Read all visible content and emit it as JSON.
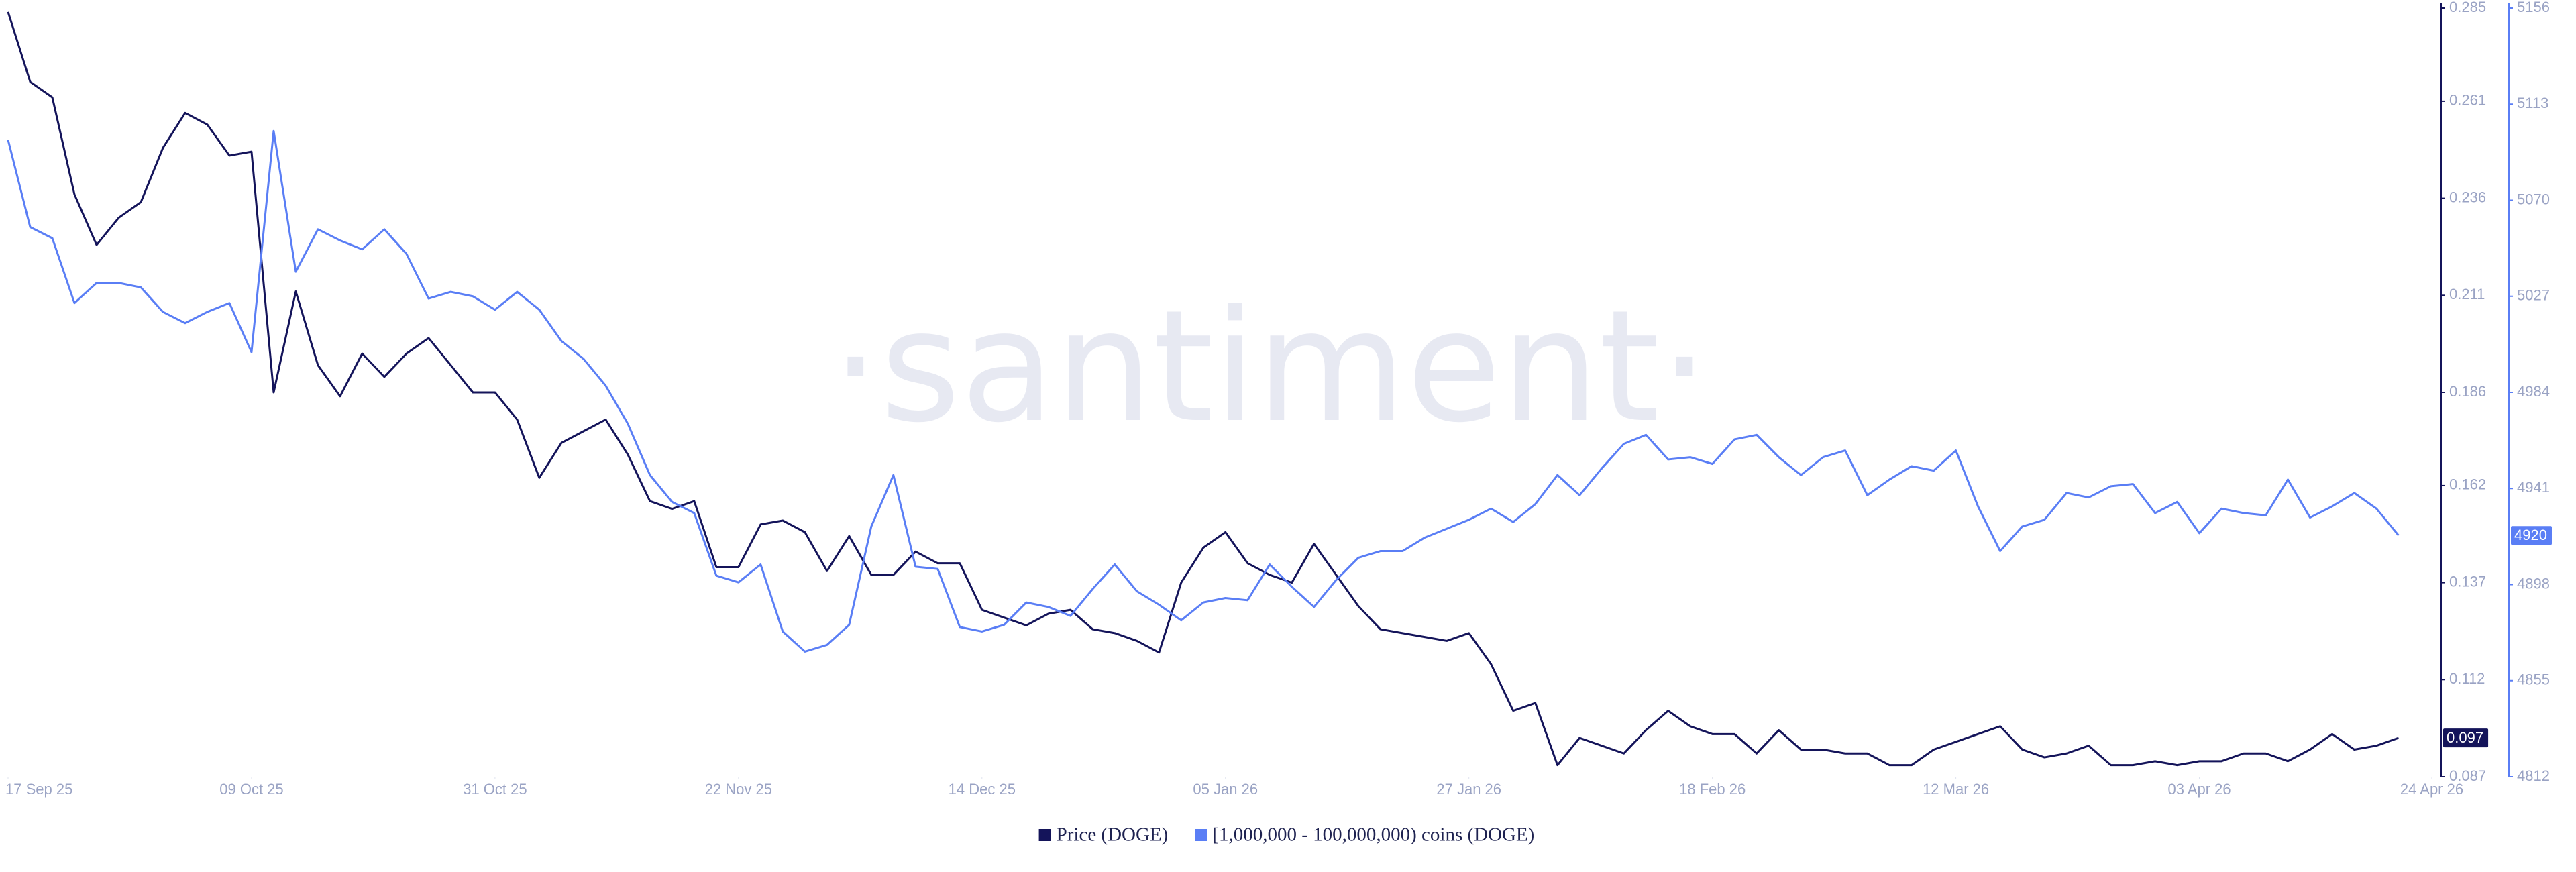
{
  "chart_data": {
    "type": "line",
    "watermark": "·santiment·",
    "x": [
      "2025-09-17",
      "2025-09-19",
      "2025-09-21",
      "2025-09-23",
      "2025-09-25",
      "2025-09-27",
      "2025-09-29",
      "2025-10-01",
      "2025-10-03",
      "2025-10-05",
      "2025-10-07",
      "2025-10-09",
      "2025-10-11",
      "2025-10-13",
      "2025-10-15",
      "2025-10-17",
      "2025-10-19",
      "2025-10-21",
      "2025-10-23",
      "2025-10-25",
      "2025-10-27",
      "2025-10-29",
      "2025-10-31",
      "2025-11-02",
      "2025-11-04",
      "2025-11-06",
      "2025-11-08",
      "2025-11-10",
      "2025-11-12",
      "2025-11-14",
      "2025-11-16",
      "2025-11-18",
      "2025-11-20",
      "2025-11-22",
      "2025-11-24",
      "2025-11-26",
      "2025-11-28",
      "2025-11-30",
      "2025-12-02",
      "2025-12-04",
      "2025-12-06",
      "2025-12-08",
      "2025-12-10",
      "2025-12-12",
      "2025-12-14",
      "2025-12-16",
      "2025-12-18",
      "2025-12-20",
      "2025-12-22",
      "2025-12-24",
      "2025-12-26",
      "2025-12-28",
      "2025-12-30",
      "2026-01-01",
      "2026-01-03",
      "2026-01-05",
      "2026-01-07",
      "2026-01-09",
      "2026-01-11",
      "2026-01-13",
      "2026-01-15",
      "2026-01-17",
      "2026-01-19",
      "2026-01-21",
      "2026-01-23",
      "2026-01-25",
      "2026-01-27",
      "2026-01-29",
      "2026-01-31",
      "2026-02-02",
      "2026-02-04",
      "2026-02-06",
      "2026-02-08",
      "2026-02-10",
      "2026-02-12",
      "2026-02-14",
      "2026-02-16",
      "2026-02-18",
      "2026-02-20",
      "2026-02-22",
      "2026-02-24",
      "2026-02-26",
      "2026-02-28",
      "2026-03-02",
      "2026-03-04",
      "2026-03-06",
      "2026-03-08",
      "2026-03-10",
      "2026-03-12",
      "2026-03-14",
      "2026-03-16",
      "2026-03-18",
      "2026-03-20",
      "2026-03-22",
      "2026-03-24",
      "2026-03-26",
      "2026-03-28",
      "2026-03-30",
      "2026-04-01",
      "2026-04-03",
      "2026-04-05",
      "2026-04-07",
      "2026-04-09",
      "2026-04-11",
      "2026-04-13",
      "2026-04-15",
      "2026-04-17",
      "2026-04-19",
      "2026-04-21"
    ],
    "xlim": [
      "2025-09-17",
      "2026-04-24"
    ],
    "xticks": [
      {
        "value": "2025-09-17",
        "label": "17 Sep 25"
      },
      {
        "value": "2025-10-09",
        "label": "09 Oct 25"
      },
      {
        "value": "2025-10-31",
        "label": "31 Oct 25"
      },
      {
        "value": "2025-11-22",
        "label": "22 Nov 25"
      },
      {
        "value": "2025-12-14",
        "label": "14 Dec 25"
      },
      {
        "value": "2026-01-05",
        "label": "05 Jan 26"
      },
      {
        "value": "2026-01-27",
        "label": "27 Jan 26"
      },
      {
        "value": "2026-02-18",
        "label": "18 Feb 26"
      },
      {
        "value": "2026-03-12",
        "label": "12 Mar 26"
      },
      {
        "value": "2026-04-03",
        "label": "03 Apr 26"
      },
      {
        "value": "2026-04-24",
        "label": "24 Apr 26"
      }
    ],
    "ylim": [
      0.087,
      0.285
    ],
    "yticks": [
      0.087,
      0.112,
      0.137,
      0.162,
      0.186,
      0.211,
      0.236,
      0.261,
      0.285
    ],
    "y2lim": [
      4812,
      5156
    ],
    "y2ticks": [
      4812,
      4855,
      4898,
      4941,
      4984,
      5027,
      5070,
      5113,
      5156
    ],
    "series": [
      {
        "name": "Price (DOGE)",
        "color": "#14145a",
        "axis": "y",
        "last_value_label": "0.097",
        "values": [
          0.284,
          0.266,
          0.262,
          0.237,
          0.224,
          0.231,
          0.235,
          0.249,
          0.258,
          0.255,
          0.247,
          0.248,
          0.186,
          0.212,
          0.193,
          0.185,
          0.196,
          0.19,
          0.196,
          0.2,
          0.193,
          0.186,
          0.186,
          0.179,
          0.164,
          0.173,
          0.176,
          0.179,
          0.17,
          0.158,
          0.156,
          0.158,
          0.141,
          0.141,
          0.152,
          0.153,
          0.15,
          0.14,
          0.149,
          0.139,
          0.139,
          0.145,
          0.142,
          0.142,
          0.13,
          0.128,
          0.126,
          0.129,
          0.13,
          0.125,
          0.124,
          0.122,
          0.119,
          0.137,
          0.146,
          0.15,
          0.142,
          0.139,
          0.137,
          0.147,
          0.139,
          0.131,
          0.125,
          0.124,
          0.123,
          0.122,
          0.124,
          0.116,
          0.104,
          0.106,
          0.09,
          0.097,
          0.095,
          0.093,
          0.099,
          0.104,
          0.1,
          0.098,
          0.098,
          0.093,
          0.099,
          0.094,
          0.094,
          0.093,
          0.093,
          0.09,
          0.09,
          0.094,
          0.096,
          0.098,
          0.1,
          0.094,
          0.092,
          0.093,
          0.095,
          0.09,
          0.09,
          0.091,
          0.09,
          0.091,
          0.091,
          0.093,
          0.093,
          0.091,
          0.094,
          0.098,
          0.094,
          0.095,
          0.097
        ]
      },
      {
        "name": "[1,000,000 - 100,000,000) coins (DOGE)",
        "color": "#5a7ef5",
        "axis": "y2",
        "last_value_label": "4920",
        "values": [
          5097,
          5058,
          5053,
          5024,
          5033,
          5033,
          5031,
          5020,
          5015,
          5020,
          5024,
          5002,
          5101,
          5038,
          5057,
          5052,
          5048,
          5057,
          5046,
          5026,
          5029,
          5027,
          5021,
          5029,
          5021,
          5007,
          4999,
          4987,
          4970,
          4947,
          4935,
          4930,
          4902,
          4899,
          4907,
          4877,
          4868,
          4871,
          4880,
          4924,
          4947,
          4906,
          4905,
          4879,
          4877,
          4880,
          4890,
          4888,
          4884,
          4896,
          4907,
          4895,
          4889,
          4882,
          4890,
          4892,
          4891,
          4907,
          4897,
          4888,
          4900,
          4910,
          4913,
          4913,
          4919,
          4923,
          4927,
          4932,
          4926,
          4934,
          4947,
          4938,
          4950,
          4961,
          4965,
          4954,
          4955,
          4952,
          4963,
          4965,
          4955,
          4947,
          4955,
          4958,
          4938,
          4945,
          4951,
          4949,
          4958,
          4933,
          4913,
          4924,
          4927,
          4939,
          4937,
          4942,
          4943,
          4930,
          4935,
          4921,
          4932,
          4930,
          4929,
          4945,
          4928,
          4933,
          4939,
          4932,
          4920
        ]
      }
    ]
  }
}
